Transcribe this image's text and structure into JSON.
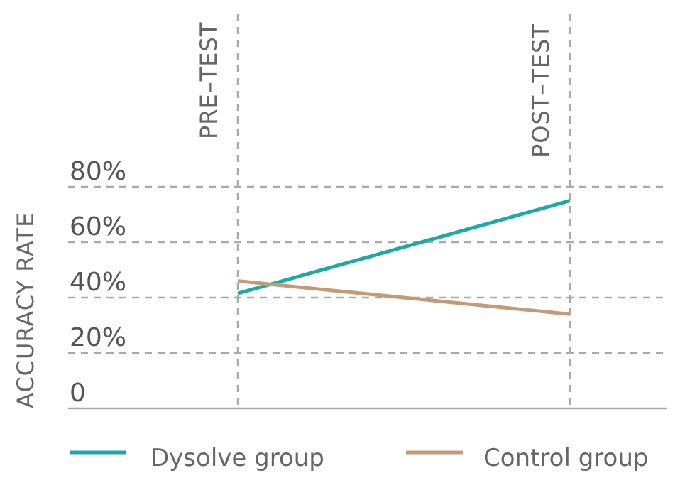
{
  "chart_data": {
    "type": "line",
    "title": "",
    "xlabel": "",
    "ylabel": "ACCURACY RATE",
    "categories": [
      "PRE-TEST",
      "POST-TEST"
    ],
    "yticks": [
      "0",
      "20%",
      "40%",
      "60%",
      "80%"
    ],
    "ytick_values": [
      0,
      20,
      40,
      60,
      80
    ],
    "ylim": [
      0,
      80
    ],
    "grid": true,
    "legend_position": "bottom",
    "series": [
      {
        "name": "Dysolve group",
        "values": [
          41.5,
          75
        ],
        "color": "#1fa9a5"
      },
      {
        "name": "Control group",
        "values": [
          46,
          34
        ],
        "color": "#c49a78"
      }
    ]
  }
}
